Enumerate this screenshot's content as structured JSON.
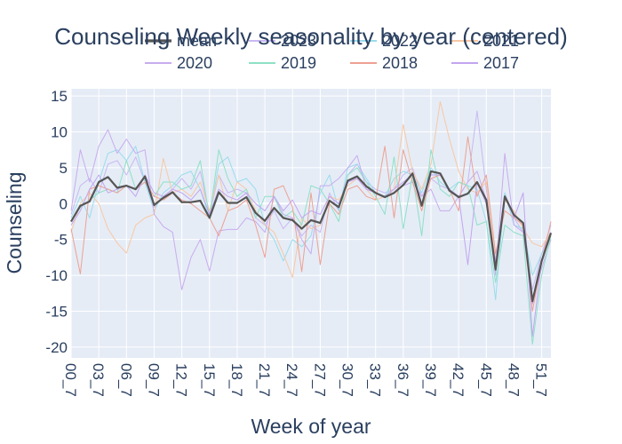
{
  "chart_data": {
    "type": "line",
    "title": "Counseling Weekly seasonality by year (centered)",
    "xlabel": "Week of year",
    "ylabel": "Counseling",
    "ylim": [
      -21.5,
      16
    ],
    "yticks": [
      15,
      10,
      5,
      0,
      -5,
      -10,
      -15,
      -20
    ],
    "x_tick_labels": [
      "00_7",
      "03_7",
      "06_7",
      "09_7",
      "12_7",
      "15_7",
      "18_7",
      "21_7",
      "24_7",
      "27_7",
      "30_7",
      "33_7",
      "36_7",
      "39_7",
      "42_7",
      "45_7",
      "48_7",
      "51_7"
    ],
    "x_tick_positions": [
      0,
      3,
      6,
      9,
      12,
      15,
      18,
      21,
      24,
      27,
      30,
      33,
      36,
      39,
      42,
      45,
      48,
      51
    ],
    "xlim": [
      0,
      52
    ],
    "grid": true,
    "legend_position": "top",
    "series": [
      {
        "name": "mean",
        "color": "#555555",
        "width": 2.2,
        "values": [
          -2.5,
          -0.3,
          0.3,
          3.0,
          3.7,
          2.2,
          2.5,
          2.0,
          3.8,
          -0.2,
          0.8,
          1.6,
          0.2,
          0.2,
          0.4,
          -2.0,
          1.6,
          0.1,
          0.1,
          0.9,
          -1.3,
          -2.4,
          -0.6,
          -2.0,
          -2.3,
          -3.5,
          -2.3,
          -2.7,
          0.4,
          -0.5,
          3.2,
          3.8,
          2.4,
          1.5,
          0.9,
          1.5,
          2.6,
          4.2,
          -0.3,
          4.5,
          4.2,
          1.8,
          0.9,
          1.4,
          3.0,
          0.5,
          -9.2,
          1.0,
          -1.6,
          -2.7,
          -13.6,
          -8.0,
          -4.1
        ]
      },
      {
        "name": "2023",
        "color": "#c9b8f2",
        "width": 1,
        "values": [
          -1.5,
          2.5,
          3.5,
          1.5,
          5.5,
          6.0,
          4.0,
          6.5,
          3.0,
          -0.5,
          1.0,
          2.0,
          3.5,
          2.0,
          4.5,
          -1.5,
          4.0,
          1.5,
          2.0,
          1.5,
          -2.0,
          -3.0,
          -1.0,
          -3.5,
          -2.0,
          -4.5,
          -3.0,
          -4.0,
          1.5,
          -1.0,
          4.0,
          5.5,
          3.0,
          2.0,
          1.5,
          2.0,
          4.0,
          5.0,
          1.0,
          3.5,
          2.5,
          2.0,
          1.0,
          3.0,
          12.9,
          2.0,
          -8.0,
          1.5,
          -2.0,
          -4.0,
          -12.0,
          -7.0,
          -3.0
        ]
      },
      {
        "name": "2022",
        "color": "#9adcec",
        "width": 1,
        "values": [
          -2.0,
          1.0,
          -2.0,
          3.0,
          7.0,
          7.5,
          6.0,
          8.0,
          3.0,
          -1.0,
          1.5,
          2.5,
          4.0,
          4.5,
          2.0,
          -2.0,
          5.5,
          6.5,
          3.0,
          3.5,
          2.0,
          -3.0,
          -5.0,
          -8.0,
          -5.0,
          -6.0,
          -4.5,
          1.5,
          4.0,
          -1.0,
          5.0,
          5.5,
          3.5,
          1.5,
          1.0,
          3.5,
          4.5,
          4.0,
          1.5,
          5.0,
          3.0,
          2.0,
          3.0,
          2.5,
          2.0,
          -2.5,
          -13.4,
          1.5,
          -3.0,
          -3.5,
          -10.0,
          -7.0,
          -5.0
        ]
      },
      {
        "name": "2021",
        "color": "#f7c8a4",
        "width": 1,
        "values": [
          -4.0,
          0.0,
          1.5,
          0.0,
          -3.5,
          -5.5,
          -6.9,
          -3.0,
          -2.0,
          -1.5,
          6.3,
          1.5,
          2.0,
          1.0,
          3.0,
          -1.0,
          4.0,
          -1.0,
          3.0,
          2.0,
          -1.0,
          -3.0,
          -4.0,
          -7.0,
          -10.3,
          -2.0,
          -3.5,
          -3.0,
          1.0,
          0.5,
          2.5,
          3.5,
          2.0,
          0.5,
          1.0,
          2.0,
          11.0,
          4.5,
          2.0,
          5.5,
          14.2,
          9.0,
          4.5,
          2.0,
          1.5,
          3.0,
          -8.0,
          0.5,
          -1.0,
          -3.5,
          -5.5,
          -6.0,
          -4.0
        ]
      },
      {
        "name": "2020",
        "color": "#c8acee",
        "width": 1,
        "values": [
          -1.0,
          7.5,
          3.0,
          8.0,
          10.3,
          7.0,
          9.0,
          7.0,
          7.5,
          -1.5,
          -3.2,
          -4.0,
          -12.0,
          -7.5,
          -5.0,
          -9.4,
          -3.8,
          -3.6,
          -3.6,
          -2.0,
          -2.5,
          -4.0,
          1.0,
          -1.5,
          -2.0,
          -5.0,
          -7.0,
          2.5,
          2.5,
          3.5,
          5.0,
          6.7,
          2.0,
          1.5,
          1.0,
          1.5,
          2.5,
          3.0,
          1.0,
          2.0,
          -1.0,
          -1.0,
          1.0,
          3.0,
          4.5,
          0.5,
          -10.0,
          7.0,
          -3.0,
          -4.0,
          -14.0,
          -9.0,
          -5.0
        ]
      },
      {
        "name": "2019",
        "color": "#8fe0c6",
        "width": 1,
        "values": [
          -2.5,
          -0.5,
          0.5,
          1.5,
          2.0,
          1.5,
          6.0,
          2.0,
          3.0,
          1.0,
          3.0,
          3.0,
          2.0,
          2.5,
          6.0,
          -2.0,
          7.5,
          3.5,
          1.0,
          2.0,
          -2.0,
          1.0,
          1.0,
          -2.0,
          -1.0,
          -3.0,
          2.5,
          2.0,
          0.0,
          -2.5,
          4.0,
          5.0,
          3.0,
          1.0,
          -1.5,
          6.5,
          -3.5,
          4.0,
          -4.5,
          7.5,
          2.0,
          1.0,
          3.0,
          2.5,
          -3.0,
          -2.5,
          -11.0,
          -3.0,
          -4.0,
          -4.5,
          -19.6,
          -10.0,
          -4.5
        ]
      },
      {
        "name": "2018",
        "color": "#eda193",
        "width": 1,
        "values": [
          -3.5,
          -9.8,
          2.0,
          2.5,
          2.0,
          1.5,
          2.5,
          2.0,
          3.0,
          1.0,
          0.5,
          1.5,
          0.5,
          0.0,
          -1.0,
          -2.0,
          -4.5,
          -1.0,
          -0.5,
          0.5,
          -3.0,
          -7.5,
          2.0,
          2.5,
          -0.5,
          -9.5,
          1.5,
          -8.5,
          0.0,
          -1.5,
          2.0,
          2.5,
          1.0,
          0.5,
          8.0,
          -2.0,
          7.5,
          3.0,
          -1.0,
          3.5,
          4.0,
          2.0,
          -1.0,
          9.3,
          1.0,
          4.0,
          -7.0,
          -1.0,
          -2.0,
          -3.0,
          -15.0,
          -8.0,
          -2.5
        ]
      },
      {
        "name": "2017",
        "color": "#c3a4f0",
        "width": 1,
        "values": [
          -3.0,
          -1.0,
          2.0,
          4.0,
          1.5,
          2.0,
          2.5,
          1.0,
          4.0,
          1.5,
          1.0,
          2.0,
          1.5,
          0.5,
          2.0,
          -1.5,
          2.0,
          1.0,
          0.5,
          1.5,
          0.0,
          -1.0,
          1.0,
          -1.0,
          0.5,
          -2.0,
          -1.0,
          -1.5,
          1.0,
          0.0,
          3.0,
          3.5,
          2.0,
          1.5,
          1.0,
          2.0,
          3.0,
          4.0,
          0.0,
          4.0,
          4.0,
          2.0,
          1.0,
          -8.5,
          3.0,
          0.0,
          -8.0,
          1.0,
          -2.0,
          1.5,
          -18.5,
          -8.0,
          -4.0
        ]
      }
    ]
  }
}
